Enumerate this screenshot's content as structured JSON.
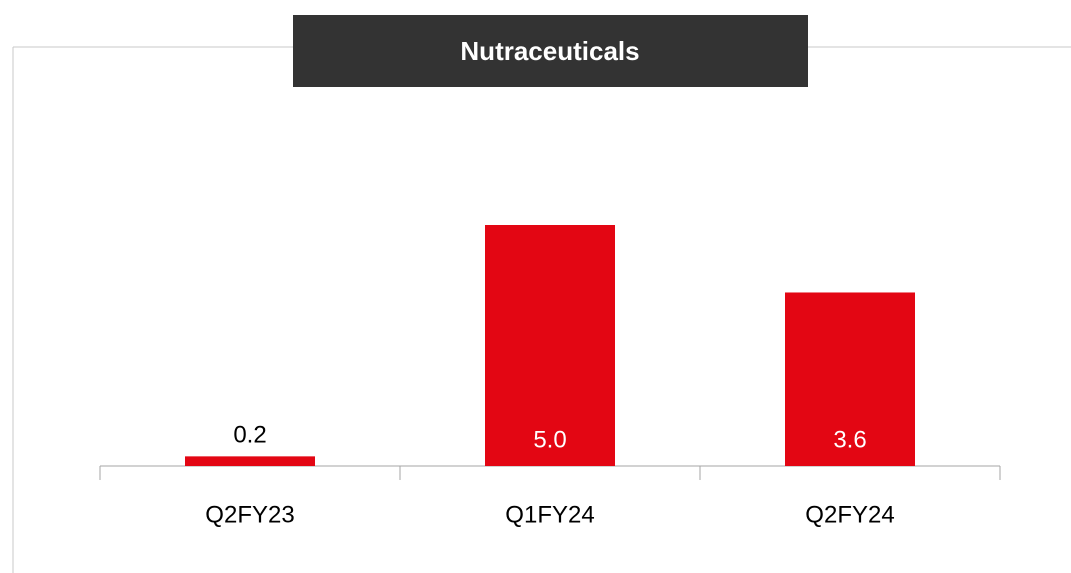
{
  "chart_data": {
    "type": "bar",
    "title": "Nutraceuticals",
    "categories": [
      "Q2FY23",
      "Q1FY24",
      "Q2FY24"
    ],
    "values": [
      0.2,
      5.0,
      3.6
    ],
    "value_labels": [
      "0.2",
      "5.0",
      "3.6"
    ],
    "color": "#e30613"
  }
}
